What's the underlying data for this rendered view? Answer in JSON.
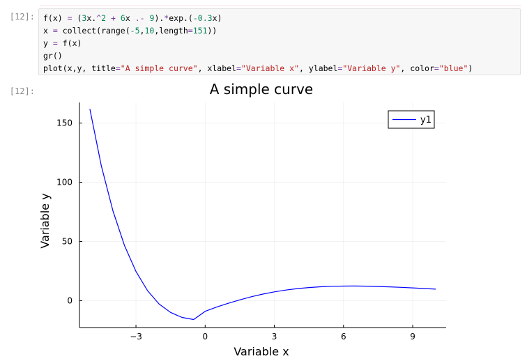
{
  "cell": {
    "input_prompt": "[12]:",
    "output_prompt": "[12]:",
    "code_lines": [
      [
        {
          "t": "f(x) ",
          "c": "plain"
        },
        {
          "t": "=",
          "c": "op"
        },
        {
          "t": " (",
          "c": "plain"
        },
        {
          "t": "3",
          "c": "num"
        },
        {
          "t": "x.",
          "c": "plain"
        },
        {
          "t": "^",
          "c": "op"
        },
        {
          "t": "2",
          "c": "num"
        },
        {
          "t": " ",
          "c": "plain"
        },
        {
          "t": "+",
          "c": "op"
        },
        {
          "t": " ",
          "c": "plain"
        },
        {
          "t": "6",
          "c": "num"
        },
        {
          "t": "x ",
          "c": "plain"
        },
        {
          "t": ".-",
          "c": "op"
        },
        {
          "t": " ",
          "c": "plain"
        },
        {
          "t": "9",
          "c": "num"
        },
        {
          "t": ").",
          "c": "plain"
        },
        {
          "t": "*",
          "c": "op"
        },
        {
          "t": "exp.(",
          "c": "plain"
        },
        {
          "t": "-0.3",
          "c": "num"
        },
        {
          "t": "x)",
          "c": "plain"
        }
      ],
      [
        {
          "t": "x ",
          "c": "plain"
        },
        {
          "t": "=",
          "c": "op"
        },
        {
          "t": " collect(range(",
          "c": "plain"
        },
        {
          "t": "-5",
          "c": "num"
        },
        {
          "t": ",",
          "c": "plain"
        },
        {
          "t": "10",
          "c": "num"
        },
        {
          "t": ",length",
          "c": "plain"
        },
        {
          "t": "=",
          "c": "op"
        },
        {
          "t": "151",
          "c": "num"
        },
        {
          "t": "))",
          "c": "plain"
        }
      ],
      [
        {
          "t": "y ",
          "c": "plain"
        },
        {
          "t": "=",
          "c": "op"
        },
        {
          "t": " f(x)",
          "c": "plain"
        }
      ],
      [
        {
          "t": "gr()",
          "c": "plain"
        }
      ],
      [
        {
          "t": "plot(x,y, title",
          "c": "plain"
        },
        {
          "t": "=",
          "c": "op"
        },
        {
          "t": "\"A simple curve\"",
          "c": "str"
        },
        {
          "t": ", xlabel",
          "c": "plain"
        },
        {
          "t": "=",
          "c": "op"
        },
        {
          "t": "\"Variable x\"",
          "c": "str"
        },
        {
          "t": ", ylabel",
          "c": "plain"
        },
        {
          "t": "=",
          "c": "op"
        },
        {
          "t": "\"Variable y\"",
          "c": "str"
        },
        {
          "t": ", color",
          "c": "plain"
        },
        {
          "t": "=",
          "c": "op"
        },
        {
          "t": "\"blue\"",
          "c": "str"
        },
        {
          "t": ")",
          "c": "plain"
        }
      ]
    ]
  },
  "chart_data": {
    "type": "line",
    "title": "A simple curve",
    "xlabel": "Variable x",
    "ylabel": "Variable y",
    "xlim": [
      -5.45,
      10.45
    ],
    "ylim": [
      -22.7,
      167.4
    ],
    "x_ticks": [
      -3,
      0,
      3,
      6,
      9
    ],
    "x_tick_labels": [
      "−3",
      "0",
      "3",
      "6",
      "9"
    ],
    "y_ticks": [
      0,
      50,
      100,
      150
    ],
    "y_tick_labels": [
      "0",
      "50",
      "100",
      "150"
    ],
    "grid": true,
    "legend_position": "top-right",
    "series": [
      {
        "name": "y1",
        "color": "#0000ff",
        "x": [
          -5.0,
          -4.5,
          -4.0,
          -3.5,
          -3.0,
          -2.5,
          -2.0,
          -1.5,
          -1.0,
          -0.5,
          0.0,
          0.5,
          1.0,
          1.5,
          2.0,
          2.5,
          3.0,
          3.5,
          4.0,
          4.5,
          5.0,
          5.5,
          6.0,
          6.5,
          7.0,
          7.5,
          8.0,
          8.5,
          9.0,
          9.5,
          10.0
        ],
        "y": [
          161.84,
          113.72,
          75.86,
          46.7,
          24.6,
          8.47,
          -2.73,
          -9.95,
          -14.17,
          -15.93,
          -9.0,
          -5.42,
          -2.22,
          0.69,
          3.29,
          5.54,
          7.43,
          8.97,
          10.18,
          11.09,
          11.74,
          12.14,
          12.34,
          12.36,
          12.24,
          11.99,
          11.65,
          11.24,
          10.76,
          10.25,
          9.71
        ]
      }
    ]
  }
}
